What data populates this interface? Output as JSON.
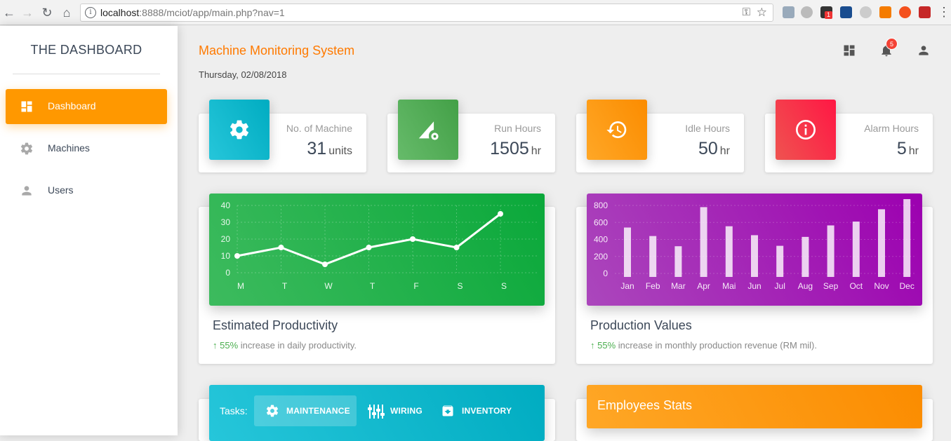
{
  "browser": {
    "url_host": "localhost",
    "url_rest": ":8888/mciot/app/main.php?nav=1",
    "extension_badge": "1"
  },
  "sidebar": {
    "brand": "THE DASHBOARD",
    "items": [
      {
        "label": "Dashboard",
        "icon": "dashboard-icon",
        "active": true
      },
      {
        "label": "Machines",
        "icon": "gear-icon",
        "active": false
      },
      {
        "label": "Users",
        "icon": "person-icon",
        "active": false
      }
    ]
  },
  "header": {
    "title": "Machine Monitoring System",
    "date": "Thursday, 02/08/2018",
    "notification_count": "5"
  },
  "stats": [
    {
      "label": "No. of Machine",
      "value": "31",
      "unit": "units",
      "icon": "gear-icon",
      "color": "#00bcd4"
    },
    {
      "label": "Run Hours",
      "value": "1505",
      "unit": "hr",
      "icon": "signal-gear-icon",
      "color": "#4caf50"
    },
    {
      "label": "Idle Hours",
      "value": "50",
      "unit": "hr",
      "icon": "history-icon",
      "color": "#ff9800"
    },
    {
      "label": "Alarm Hours",
      "value": "5",
      "unit": "hr",
      "icon": "info-icon",
      "color": "#f44336"
    }
  ],
  "productivity": {
    "title": "Estimated Productivity",
    "change": "55%",
    "change_text": " increase in daily productivity."
  },
  "production": {
    "title": "Production Values",
    "change": "55%",
    "change_text": " increase in monthly production revenue (RM mil)."
  },
  "chart_data": [
    {
      "type": "line",
      "categories": [
        "M",
        "T",
        "W",
        "T",
        "F",
        "S",
        "S"
      ],
      "values": [
        10,
        15,
        5,
        15,
        20,
        15,
        35
      ],
      "ylim": [
        0,
        40
      ],
      "yticks": [
        0,
        10,
        20,
        30,
        40
      ],
      "grid": true,
      "color": "#4caf50"
    },
    {
      "type": "bar",
      "categories": [
        "Jan",
        "Feb",
        "Mar",
        "Apr",
        "Mai",
        "Jun",
        "Jul",
        "Aug",
        "Sep",
        "Oct",
        "Nov",
        "Dec"
      ],
      "values": [
        540,
        440,
        320,
        780,
        555,
        450,
        325,
        430,
        565,
        610,
        755,
        895
      ],
      "ylim": [
        0,
        800
      ],
      "yticks": [
        0,
        200,
        400,
        600,
        800
      ],
      "grid": true,
      "color": "#9c27b0"
    }
  ],
  "tasks": {
    "label": "Tasks:",
    "tabs": [
      {
        "label": "MAINTENANCE",
        "icon": "gear-icon",
        "active": true
      },
      {
        "label": "WIRING",
        "icon": "sliders-icon",
        "active": false
      },
      {
        "label": "INVENTORY",
        "icon": "archive-icon",
        "active": false
      }
    ]
  },
  "employees": {
    "title": "Employees Stats"
  }
}
